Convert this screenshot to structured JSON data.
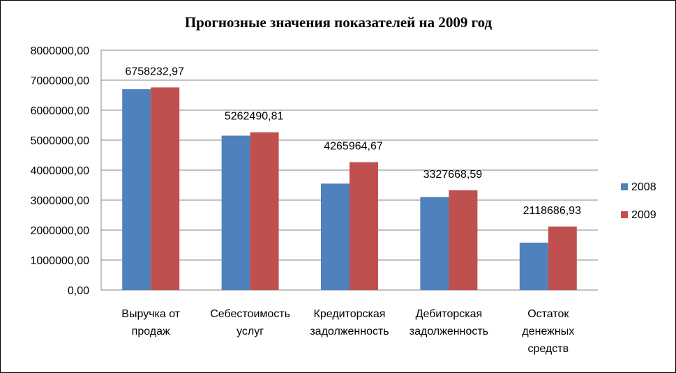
{
  "chart_data": {
    "type": "bar",
    "title": "Прогнозные значения показателей на 2009 год",
    "categories": [
      [
        "Выручка от",
        "продаж"
      ],
      [
        "Себестоимость",
        "услуг"
      ],
      [
        "Кредиторская",
        "задолженность"
      ],
      [
        "Дебиторская",
        "задолженность"
      ],
      [
        "Остаток",
        "денежных",
        "средств"
      ]
    ],
    "series": [
      {
        "name": "2008",
        "color": "#4F81BD",
        "values": [
          6700000,
          5150000,
          3550000,
          3100000,
          1580000
        ]
      },
      {
        "name": "2009",
        "color": "#C0504D",
        "values": [
          6758232.97,
          5262490.81,
          4265964.67,
          3327668.59,
          2118686.93
        ]
      }
    ],
    "data_labels": [
      "6758232,97",
      "5262490,81",
      "4265964,67",
      "3327668,59",
      "2118686,93"
    ],
    "y_ticks": [
      "0,00",
      "1000000,00",
      "2000000,00",
      "3000000,00",
      "4000000,00",
      "5000000,00",
      "6000000,00",
      "7000000,00",
      "8000000,00"
    ],
    "ylim": [
      0,
      8000000
    ],
    "grid": true,
    "legend_position": "right"
  }
}
